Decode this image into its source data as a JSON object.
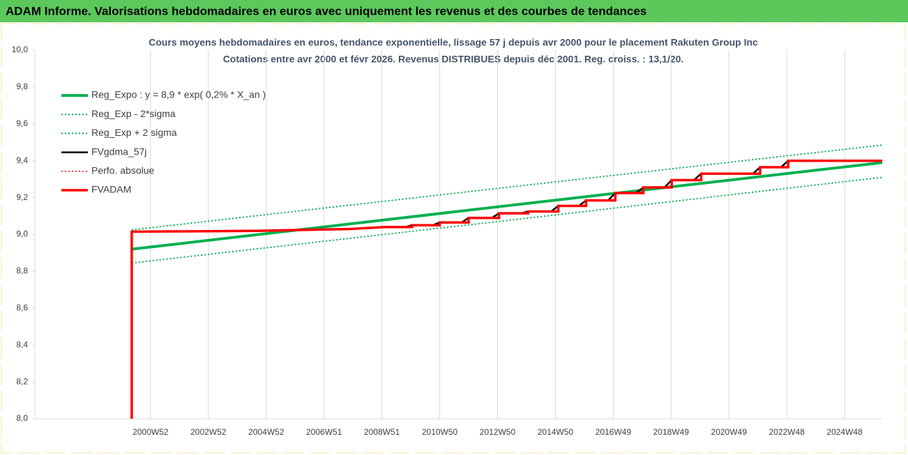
{
  "chart_data": {
    "type": "line",
    "title": "ADAM Informe. Valorisations hebdomadaires en euros avec uniquement les revenus et des courbes de tendances",
    "subtitle": [
      "Cours moyens hebdomadaires en euros, tendance exponentielle, lissage 57 j depuis avr 2000 pour le placement Rakuten Group Inc",
      "Cotations entre avr 2000 et févr 2026. Revenus DISTRIBUES depuis déc 2001. Reg. croiss. : 13,1/20."
    ],
    "xlim": [
      1997,
      2026.3
    ],
    "xticks": [
      {
        "value": 2001,
        "label": "2000W52"
      },
      {
        "value": 2003,
        "label": "2002W52"
      },
      {
        "value": 2005,
        "label": "2004W52"
      },
      {
        "value": 2007,
        "label": "2006W51"
      },
      {
        "value": 2009,
        "label": "2008W51"
      },
      {
        "value": 2011,
        "label": "2010W50"
      },
      {
        "value": 2013,
        "label": "2012W50"
      },
      {
        "value": 2015,
        "label": "2014W50"
      },
      {
        "value": 2017,
        "label": "2016W49"
      },
      {
        "value": 2019,
        "label": "2018W49"
      },
      {
        "value": 2021,
        "label": "2020W49"
      },
      {
        "value": 2023,
        "label": "2022W48"
      },
      {
        "value": 2025,
        "label": "2024W48"
      }
    ],
    "ylim": [
      8.0,
      10.0
    ],
    "yticks": [
      {
        "value": 8.0,
        "label": "8,0"
      },
      {
        "value": 8.2,
        "label": "8,2"
      },
      {
        "value": 8.4,
        "label": "8,4"
      },
      {
        "value": 8.6,
        "label": "8,6"
      },
      {
        "value": 8.8,
        "label": "8,8"
      },
      {
        "value": 9.0,
        "label": "9,0"
      },
      {
        "value": 9.2,
        "label": "9,2"
      },
      {
        "value": 9.4,
        "label": "9,4"
      },
      {
        "value": 9.6,
        "label": "9,6"
      },
      {
        "value": 9.8,
        "label": "9,8"
      },
      {
        "value": 10.0,
        "label": "10,0"
      }
    ],
    "grid": "x",
    "legend": "top-left",
    "series": [
      {
        "name": "Reg_Expo : y = 8,9 * exp( 0,2% *  X_an )",
        "color": "#00b050",
        "style": "solid",
        "width": 4,
        "x": [
          2000.35,
          2013,
          2026.3
        ],
        "values": [
          8.92,
          9.15,
          9.39
        ]
      },
      {
        "name": "Reg_Exp - 2*sigma",
        "color": "#00b050",
        "style": "dotted",
        "width": 2,
        "x": [
          2000.35,
          2013,
          2026.3
        ],
        "values": [
          8.845,
          9.07,
          9.31
        ]
      },
      {
        "name": "Reg_Exp + 2 sigma",
        "color": "#00b050",
        "style": "dotted",
        "width": 2,
        "x": [
          2000.35,
          2013,
          2026.3
        ],
        "values": [
          9.025,
          9.25,
          9.485
        ]
      },
      {
        "name": "FVgdma_57j",
        "color": "#000000",
        "style": "solid",
        "width": 2.5,
        "x": [
          2000.35,
          2000.35,
          2004.8,
          2007.9,
          2009.1,
          2009.79,
          2010.04,
          2010.75,
          2011.0,
          2011.75,
          2012.0,
          2012.8,
          2013.05,
          2013.81,
          2014.06,
          2014.85,
          2015.1,
          2015.81,
          2016.06,
          2016.82,
          2017.07,
          2017.79,
          2018.04,
          2018.77,
          2019.02,
          2019.79,
          2020.04,
          2021.83,
          2022.08,
          2022.8,
          2023.05,
          2026.3
        ],
        "values": [
          8.0,
          9.015,
          9.02,
          9.03,
          9.04,
          9.04,
          9.05,
          9.05,
          9.065,
          9.065,
          9.09,
          9.09,
          9.115,
          9.115,
          9.125,
          9.125,
          9.155,
          9.155,
          9.185,
          9.185,
          9.225,
          9.225,
          9.255,
          9.255,
          9.295,
          9.295,
          9.33,
          9.33,
          9.365,
          9.365,
          9.4,
          9.4
        ]
      },
      {
        "name": "Perfo. absolue",
        "color": "#ff0000",
        "style": "dotted",
        "width": 1.5,
        "x": [
          2000.35,
          2000.35,
          2004.8,
          2007.9,
          2009.1,
          2010.04,
          2010.04,
          2011.0,
          2011.0,
          2012.0,
          2012.0,
          2013.05,
          2013.05,
          2014.06,
          2014.06,
          2015.1,
          2015.1,
          2016.06,
          2016.06,
          2017.07,
          2017.07,
          2018.04,
          2018.04,
          2019.02,
          2019.02,
          2020.04,
          2020.04,
          2022.08,
          2022.08,
          2023.05,
          2023.05,
          2026.3
        ],
        "values": [
          8.0,
          9.015,
          9.02,
          9.03,
          9.04,
          9.04,
          9.05,
          9.05,
          9.065,
          9.065,
          9.09,
          9.09,
          9.115,
          9.115,
          9.125,
          9.125,
          9.155,
          9.155,
          9.185,
          9.185,
          9.225,
          9.225,
          9.255,
          9.255,
          9.295,
          9.295,
          9.33,
          9.33,
          9.365,
          9.365,
          9.4,
          9.4
        ]
      },
      {
        "name": "FVADAM",
        "color": "#ff0000",
        "style": "solid",
        "width": 3.5,
        "x": [
          2000.35,
          2000.35,
          2004.8,
          2007.9,
          2009.1,
          2010.04,
          2010.04,
          2011.0,
          2011.0,
          2012.0,
          2012.0,
          2013.05,
          2013.05,
          2014.06,
          2014.06,
          2015.1,
          2015.1,
          2016.06,
          2016.06,
          2017.07,
          2017.07,
          2018.04,
          2018.04,
          2019.02,
          2019.02,
          2020.04,
          2020.04,
          2022.08,
          2022.08,
          2023.05,
          2023.05,
          2026.3
        ],
        "values": [
          8.0,
          9.015,
          9.02,
          9.03,
          9.04,
          9.04,
          9.05,
          9.05,
          9.065,
          9.065,
          9.09,
          9.09,
          9.115,
          9.115,
          9.125,
          9.125,
          9.155,
          9.155,
          9.185,
          9.185,
          9.225,
          9.225,
          9.255,
          9.255,
          9.295,
          9.295,
          9.33,
          9.33,
          9.365,
          9.365,
          9.4,
          9.4
        ]
      }
    ]
  }
}
